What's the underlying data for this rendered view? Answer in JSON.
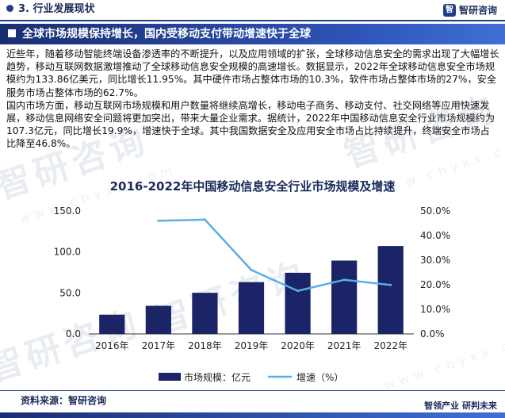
{
  "header": {
    "section": "3. 行业发展现状",
    "logo_text": "智研咨询",
    "logo_mark": "智"
  },
  "banner": {
    "title": "全球市场规模保持增长，国内受移动支付带动增速快于全球"
  },
  "body": {
    "paragraphs": [
      "近些年，随着移动智能终端设备渗透率的不断提升，以及应用领域的扩张，全球移动信息安全的需求出现了大幅增长趋势，移动互联网数据激增推动了全球移动信息安全规模的高速增长。数据显示，2022年全球移动信息安全市场规模约为133.86亿美元，同比增长11.95%。其中硬件市场占整体市场的10.3%，软件市场占整体市场的27%，安全服务市场占整体市场的62.7%。",
      "国内市场方面，移动互联网市场规模和用户数量将继续高增长，移动电子商务、移动支付、社交网络等应用快速发展，移动信息网络安全问题将更加突出，带来大量企业需求。据统计，2022年中国移动信息安全行业市场规模约为107.3亿元，同比增长19.9%，增速快于全球。其中我国数据安全及应用安全市场占比持续提升，终端安全市场占比降至46.8%。"
    ]
  },
  "chart_data": {
    "type": "bar+line",
    "title": "2016-2022年中国移动信息安全行业市场规模及增速",
    "categories": [
      "2016年",
      "2017年",
      "2018年",
      "2019年",
      "2020年",
      "2021年",
      "2022年"
    ],
    "series": [
      {
        "name": "市场规模：亿元",
        "type": "bar",
        "axis": "left",
        "color": "#1a2466",
        "values": [
          23.5,
          34.3,
          50.2,
          63.2,
          74.6,
          89.5,
          107.3
        ]
      },
      {
        "name": "增速（%）",
        "type": "line",
        "axis": "right",
        "color": "#5aaee8",
        "values": [
          null,
          46.0,
          46.5,
          26.0,
          17.5,
          22.0,
          19.9
        ]
      }
    ],
    "y_left": {
      "min": 0,
      "max": 150,
      "ticks": [
        "0.0",
        "50.0",
        "100.0",
        "150.0"
      ]
    },
    "y_right": {
      "min": 0,
      "max": 50,
      "ticks": [
        "0.0%",
        "10.0%",
        "20.0%",
        "30.0%",
        "40.0%",
        "50.0%"
      ]
    },
    "grid": false,
    "legend_position": "bottom"
  },
  "watermark": {
    "text": "智研咨询",
    "sub": "www.chyxx.com"
  },
  "footer": {
    "source": "资料来源：智研咨询",
    "slogan": "智领产业 研判未来"
  }
}
